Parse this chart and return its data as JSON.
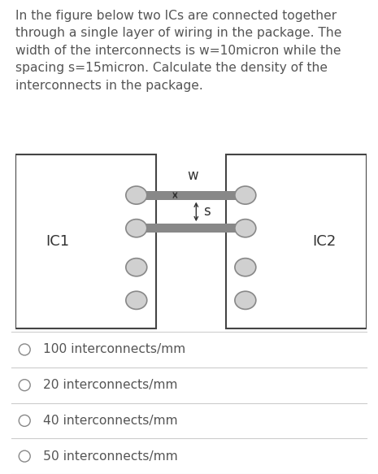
{
  "background_color": "#ffffff",
  "text_color": "#555555",
  "question_text": "In the figure below two ICs are connected together\nthrough a single layer of wiring in the package. The\nwidth of the interconnects is w=10micron while the\nspacing s=15micron. Calculate the density of the\ninterconnects in the package.",
  "question_fontsize": 11.2,
  "ic1_label": "IC1",
  "ic2_label": "IC2",
  "w_label": "w",
  "s_label": "s",
  "options": [
    "100 interconnects/mm",
    "20 interconnects/mm",
    "40 interconnects/mm",
    "50 interconnects/mm"
  ],
  "option_fontsize": 11.2,
  "ic_box_color": "#ffffff",
  "ic_box_edge": "#444444",
  "wire_color": "#888888",
  "circle_face": "#d0d0d0",
  "circle_edge": "#888888",
  "fig_width": 4.65,
  "fig_height": 5.83,
  "dpi": 100
}
